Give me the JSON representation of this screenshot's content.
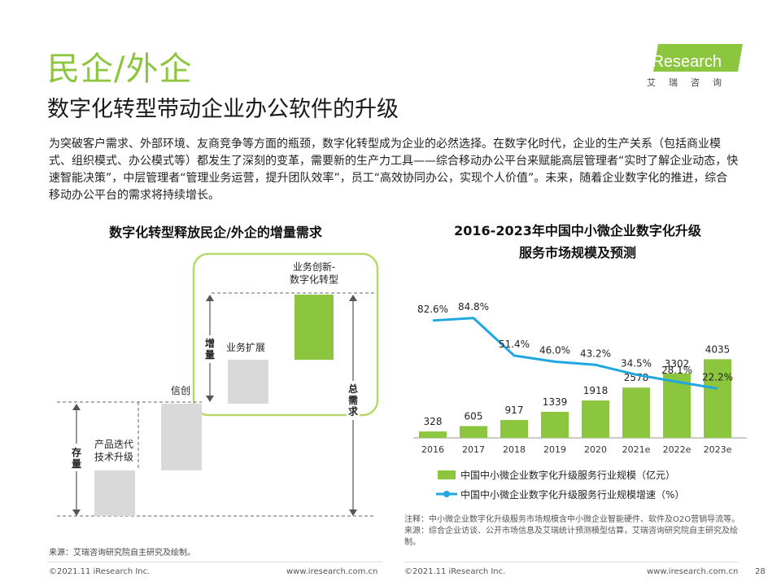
{
  "header": {
    "section_title": "民企/外企",
    "subtitle": "数字化转型带动企业办公软件的升级",
    "logo_text": "iResearch",
    "logo_cn": "艾瑞咨询"
  },
  "intro": "为突破客户需求、外部环境、友商竞争等方面的瓶颈，数字化转型成为企业的必然选择。在数字化时代，企业的生产关系（包括商业模式、组织模式、办公模式等）都发生了深刻的变革，需要新的生产力工具——综合移动办公平台来赋能高层管理者“实时了解企业动态，快速智能决策”，中层管理者“管理业务运营，提升团队效率”，员工“高效协同办公，实现个人价值”。未来，随着企业数字化的推进，综合移动办公平台的需求将持续增长。",
  "left_diagram": {
    "title": "数字化转型释放民企/外企的增量需求",
    "step1": "产品迭代\n技术升级",
    "step2": "信创",
    "step3": "业务扩展",
    "step4": "业务创新-\n数字化转型",
    "stock_label": "存量",
    "increment_label": "增量",
    "total_label": "总需求",
    "colors": {
      "gray": "#d9d9d9",
      "green": "#8cc63f",
      "frame": "#b5d96a"
    }
  },
  "chart_data": {
    "type": "bar",
    "title": "2016-2023年中国中小微企业数字化升级服务市场规模及预测",
    "categories": [
      "2016",
      "2017",
      "2018",
      "2019",
      "2020",
      "2021e",
      "2022e",
      "2023e"
    ],
    "series": [
      {
        "name": "中国中小微企业数字化升级服务行业规模（亿元）",
        "type": "bar",
        "values": [
          328,
          605,
          917,
          1339,
          1918,
          2578,
          3302,
          4035
        ],
        "color": "#8cc63f"
      },
      {
        "name": "中国中小微企业数字化升级服务行业规模增速（%）",
        "type": "line",
        "values": [
          82.6,
          84.8,
          51.4,
          46.0,
          43.2,
          34.5,
          28.1,
          22.2
        ],
        "labels": [
          "82.6%",
          "84.8%",
          "51.4%",
          "46.0%",
          "43.2%",
          "34.5%",
          "28.1%",
          "22.2%"
        ],
        "color": "#1ea7e1"
      }
    ],
    "ylim_bar": [
      0,
      4500
    ],
    "ylim_line": [
      0,
      100
    ],
    "legend": "bottom"
  },
  "notes": {
    "note": "注释：中小微企业数字化升级服务市场规模含中小微企业智能硬件、软件及O2O营销导流等。",
    "source": "来源：综合企业访谈、公开市场信息及艾瑞统计预测模型估算，艾瑞咨询研究院自主研究及绘制。"
  },
  "source_left": "来源：艾瑞咨询研究院自主研究及绘制。",
  "footer": {
    "copyright": "©2021.11 iResearch Inc.",
    "website": "www.iresearch.com.cn",
    "page": "28"
  }
}
